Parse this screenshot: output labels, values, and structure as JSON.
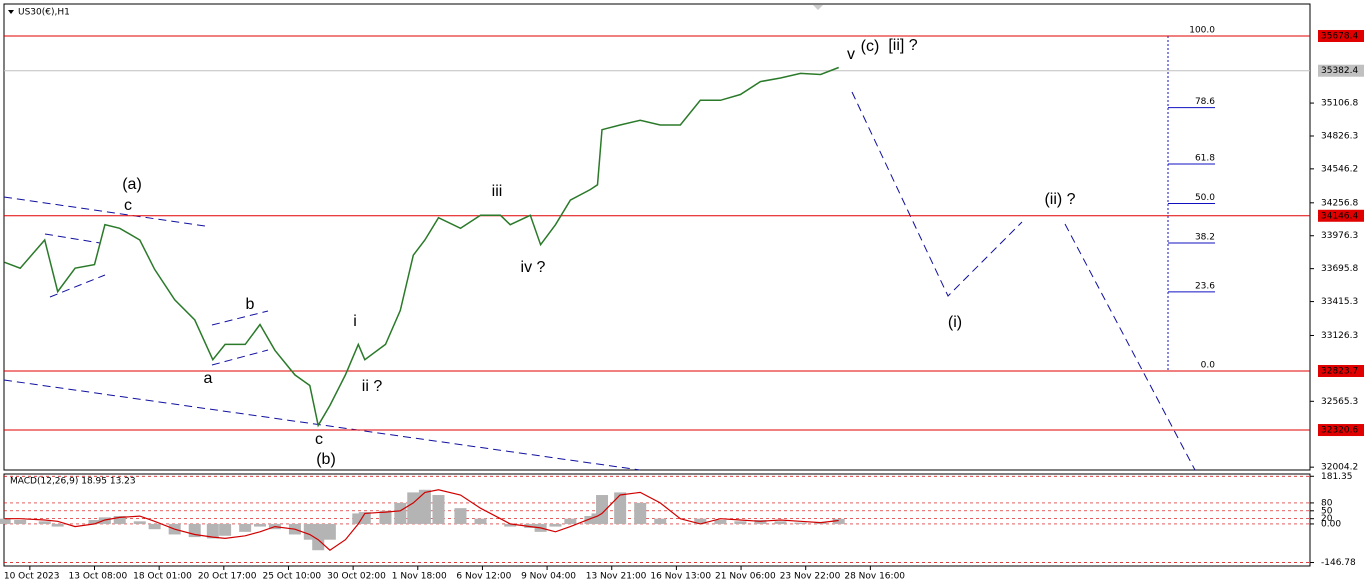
{
  "chart_data": [
    {
      "type": "line",
      "title": "US30(€),H1",
      "color": "#2a7a2a",
      "x": [
        -3.9,
        -1.5,
        2.3,
        4.3,
        7,
        10,
        11.6,
        13.9,
        17,
        19.3,
        22.4,
        25.5,
        28.3,
        30.2,
        33.3,
        35.6,
        37.9,
        41,
        43.3,
        44.6,
        46.4,
        48.8,
        50.8,
        51.8,
        55,
        57.3,
        59.3,
        61.1,
        63.2,
        66.6,
        69.7,
        72.8,
        74.3,
        77.4,
        79,
        81.3,
        83.6,
        86.7,
        87.8,
        88.5,
        91.3,
        94.4,
        97.5,
        100.6,
        103.7,
        106.8,
        109.9,
        113,
        116.1,
        119.2,
        122.3,
        125.1
      ],
      "values": [
        33750,
        33700,
        33940,
        33500,
        33700,
        33730,
        34070,
        34040,
        33940,
        33690,
        33430,
        33260,
        32920,
        33050,
        33050,
        33220,
        33000,
        32790,
        32700,
        32360,
        32530,
        32790,
        33050,
        32920,
        33050,
        33340,
        33810,
        33940,
        34130,
        34040,
        34150,
        34150,
        34070,
        34150,
        33900,
        34070,
        34280,
        34370,
        34410,
        34880,
        34920,
        34960,
        34920,
        34920,
        35130,
        35130,
        35180,
        35290,
        35320,
        35360,
        35350,
        35410
      ],
      "xlim": [
        -4,
        198
      ],
      "xticks": [
        {
          "value": 0,
          "label": "10 Oct 2023"
        },
        {
          "value": 10,
          "label": "13 Oct 08:00"
        },
        {
          "value": 20,
          "label": "18 Oct 01:00"
        },
        {
          "value": 30,
          "label": "20 Oct 17:00"
        },
        {
          "value": 40,
          "label": "25 Oct 10:00"
        },
        {
          "value": 50,
          "label": "30 Oct 02:00"
        },
        {
          "value": 60,
          "label": "1 Nov 18:00"
        },
        {
          "value": 70,
          "label": "6 Nov 12:00"
        },
        {
          "value": 80,
          "label": "9 Nov 04:00"
        },
        {
          "value": 90,
          "label": "13 Nov 21:00"
        },
        {
          "value": 100,
          "label": "16 Nov 13:00"
        },
        {
          "value": 110,
          "label": "21 Nov 06:00"
        },
        {
          "value": 120,
          "label": "23 Nov 22:00"
        },
        {
          "value": 130,
          "label": "28 Nov 16:00"
        }
      ],
      "ylim": [
        31980,
        35951
      ],
      "yticks": [
        35106.8,
        34826.3,
        34546.2,
        34256.8,
        33976.3,
        33695.8,
        33415.3,
        33126.3,
        32565.3,
        32004.2
      ],
      "hlines": [
        35678.4,
        34146.4,
        32823.7,
        32320.6
      ],
      "hline_color": "#e00000",
      "current_price": 35382.4,
      "fib_levels": [
        {
          "value": 100,
          "label": "100.0"
        },
        {
          "value": 78.6,
          "label": "78.6"
        },
        {
          "value": 61.8,
          "label": "61.8"
        },
        {
          "value": 50,
          "label": "50.0"
        },
        {
          "value": 38.2,
          "label": "38.2"
        },
        {
          "value": 23.6,
          "label": "23.6"
        },
        {
          "value": 0,
          "label": "0.0"
        }
      ],
      "annotations": [
        "(a)",
        "c",
        "b",
        "a",
        "c",
        "(b)",
        "i",
        "ii ?",
        "iii",
        "iv ?",
        "v",
        "(c)",
        "[ii] ?",
        "(ii) ?",
        "(i)"
      ]
    },
    {
      "type": "bar",
      "title": "MACD(12,26,9) 18.95 13.23",
      "color": "#b4b4b4",
      "x": [
        -3.9,
        -1.5,
        2.3,
        4.3,
        7,
        10,
        11.6,
        13.9,
        17,
        19.3,
        22.4,
        25.5,
        28.3,
        30.2,
        33.3,
        35.6,
        37.9,
        41,
        43.3,
        44.6,
        46.4,
        48.8,
        50.8,
        51.8,
        55,
        57.3,
        59.3,
        61.1,
        63.2,
        66.6,
        69.7,
        72.8,
        74.3,
        77.4,
        79,
        81.3,
        83.6,
        86.7,
        87.8,
        88.5,
        91.3,
        94.4,
        97.5,
        100.6,
        103.7,
        106.8,
        109.9,
        113,
        116.1,
        119.2,
        122.3,
        125.1
      ],
      "values": [
        20,
        15,
        10,
        -10,
        0,
        15,
        25,
        30,
        10,
        -20,
        -40,
        -50,
        -55,
        -45,
        -30,
        -10,
        -20,
        -40,
        -60,
        -100,
        -60,
        0,
        40,
        45,
        50,
        80,
        120,
        130,
        110,
        60,
        20,
        0,
        -10,
        -15,
        -30,
        -10,
        20,
        30,
        40,
        110,
        120,
        80,
        20,
        0,
        20,
        15,
        10,
        15,
        10,
        5,
        5,
        19
      ],
      "signal": {
        "color": "#d00000",
        "values": [
          20,
          20,
          15,
          10,
          -10,
          0,
          15,
          25,
          30,
          10,
          -20,
          -40,
          -50,
          -55,
          -45,
          -30,
          -10,
          -20,
          -40,
          -60,
          -100,
          -60,
          0,
          40,
          45,
          50,
          80,
          120,
          130,
          110,
          60,
          20,
          0,
          -10,
          -15,
          -30,
          -10,
          20,
          30,
          40,
          110,
          120,
          80,
          20,
          0,
          20,
          15,
          10,
          15,
          10,
          5,
          13
        ]
      },
      "xlim": [
        -4,
        198
      ],
      "ylim": [
        -160,
        190
      ],
      "yticks": [
        181.35,
        80,
        50,
        {
          "value": 0,
          "label": "0.00"
        },
        20,
        -146.78
      ]
    }
  ]
}
